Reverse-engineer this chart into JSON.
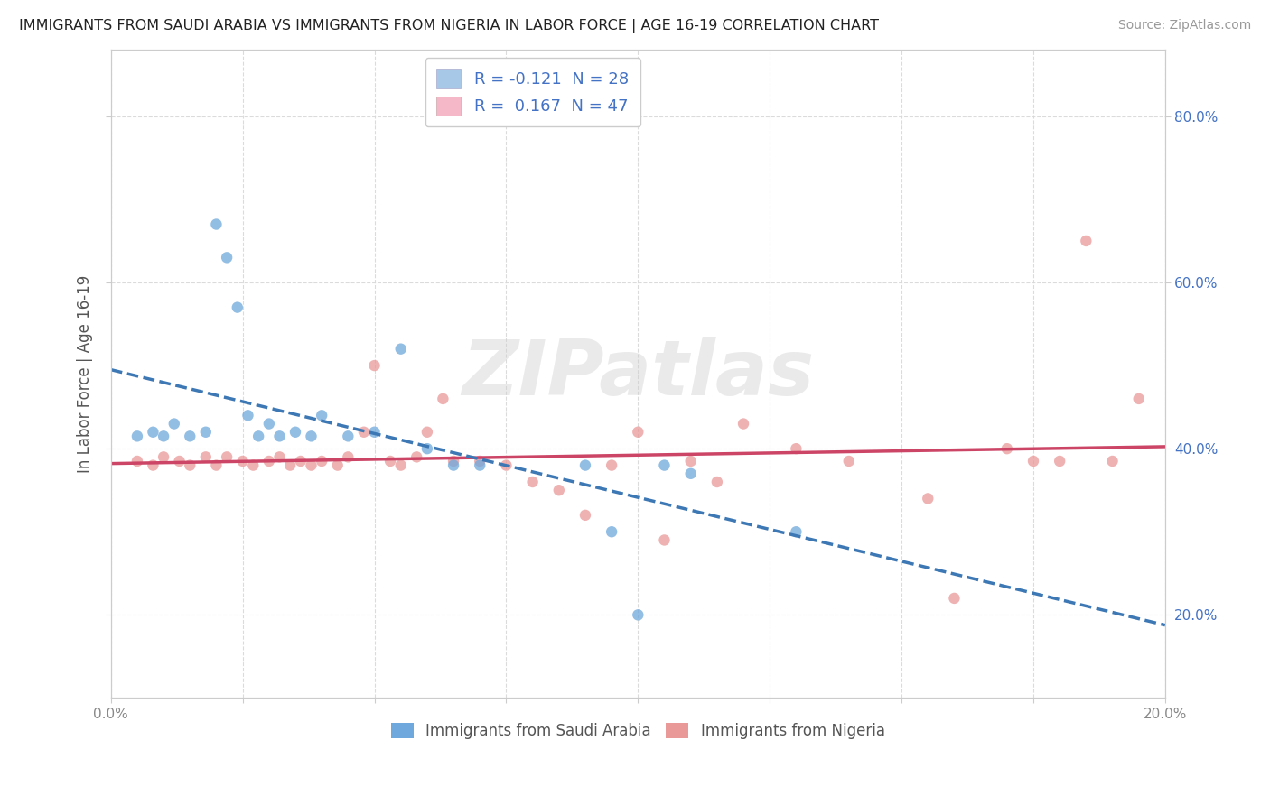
{
  "title": "IMMIGRANTS FROM SAUDI ARABIA VS IMMIGRANTS FROM NIGERIA IN LABOR FORCE | AGE 16-19 CORRELATION CHART",
  "source": "Source: ZipAtlas.com",
  "ylabel": "In Labor Force | Age 16-19",
  "xlim": [
    0.0,
    0.2
  ],
  "ylim": [
    0.1,
    0.88
  ],
  "yticks_right": [
    0.2,
    0.4,
    0.6,
    0.8
  ],
  "ytick_labels_right": [
    "20.0%",
    "40.0%",
    "60.0%",
    "80.0%"
  ],
  "xtick_labels_show": [
    "0.0%",
    "20.0%"
  ],
  "saudi_x": [
    0.005,
    0.008,
    0.01,
    0.012,
    0.015,
    0.018,
    0.02,
    0.022,
    0.024,
    0.026,
    0.028,
    0.03,
    0.032,
    0.035,
    0.038,
    0.04,
    0.045,
    0.05,
    0.055,
    0.06,
    0.065,
    0.07,
    0.09,
    0.095,
    0.1,
    0.105,
    0.11,
    0.13
  ],
  "saudi_y": [
    0.415,
    0.42,
    0.415,
    0.43,
    0.415,
    0.42,
    0.67,
    0.63,
    0.57,
    0.44,
    0.415,
    0.43,
    0.415,
    0.42,
    0.415,
    0.44,
    0.415,
    0.42,
    0.52,
    0.4,
    0.38,
    0.38,
    0.38,
    0.3,
    0.2,
    0.38,
    0.37,
    0.3
  ],
  "nigeria_x": [
    0.005,
    0.008,
    0.01,
    0.013,
    0.015,
    0.018,
    0.02,
    0.022,
    0.025,
    0.027,
    0.03,
    0.032,
    0.034,
    0.036,
    0.038,
    0.04,
    0.043,
    0.045,
    0.048,
    0.05,
    0.053,
    0.055,
    0.058,
    0.06,
    0.063,
    0.065,
    0.07,
    0.075,
    0.08,
    0.085,
    0.09,
    0.095,
    0.1,
    0.105,
    0.11,
    0.115,
    0.12,
    0.13,
    0.14,
    0.155,
    0.16,
    0.17,
    0.175,
    0.18,
    0.185,
    0.19,
    0.195
  ],
  "nigeria_y": [
    0.385,
    0.38,
    0.39,
    0.385,
    0.38,
    0.39,
    0.38,
    0.39,
    0.385,
    0.38,
    0.385,
    0.39,
    0.38,
    0.385,
    0.38,
    0.385,
    0.38,
    0.39,
    0.42,
    0.5,
    0.385,
    0.38,
    0.39,
    0.42,
    0.46,
    0.385,
    0.385,
    0.38,
    0.36,
    0.35,
    0.32,
    0.38,
    0.42,
    0.29,
    0.385,
    0.36,
    0.43,
    0.4,
    0.385,
    0.34,
    0.22,
    0.4,
    0.385,
    0.385,
    0.65,
    0.385,
    0.46
  ],
  "saudi_scatter_color": "#6fa8dc",
  "nigeria_scatter_color": "#ea9999",
  "saudi_line_color": "#3d78b5",
  "nigeria_line_color": "#cc4466",
  "saudi_legend_color": "#a8c8e8",
  "nigeria_legend_color": "#f4b8c8",
  "background_color": "#ffffff",
  "grid_color": "#d8d8d8",
  "watermark": "ZIPatlas",
  "label_color_blue": "#4472c4",
  "scatter_alpha": 0.75,
  "scatter_size": 80,
  "r_saudi": -0.121,
  "n_saudi": 28,
  "r_nigeria": 0.167,
  "n_nigeria": 47
}
